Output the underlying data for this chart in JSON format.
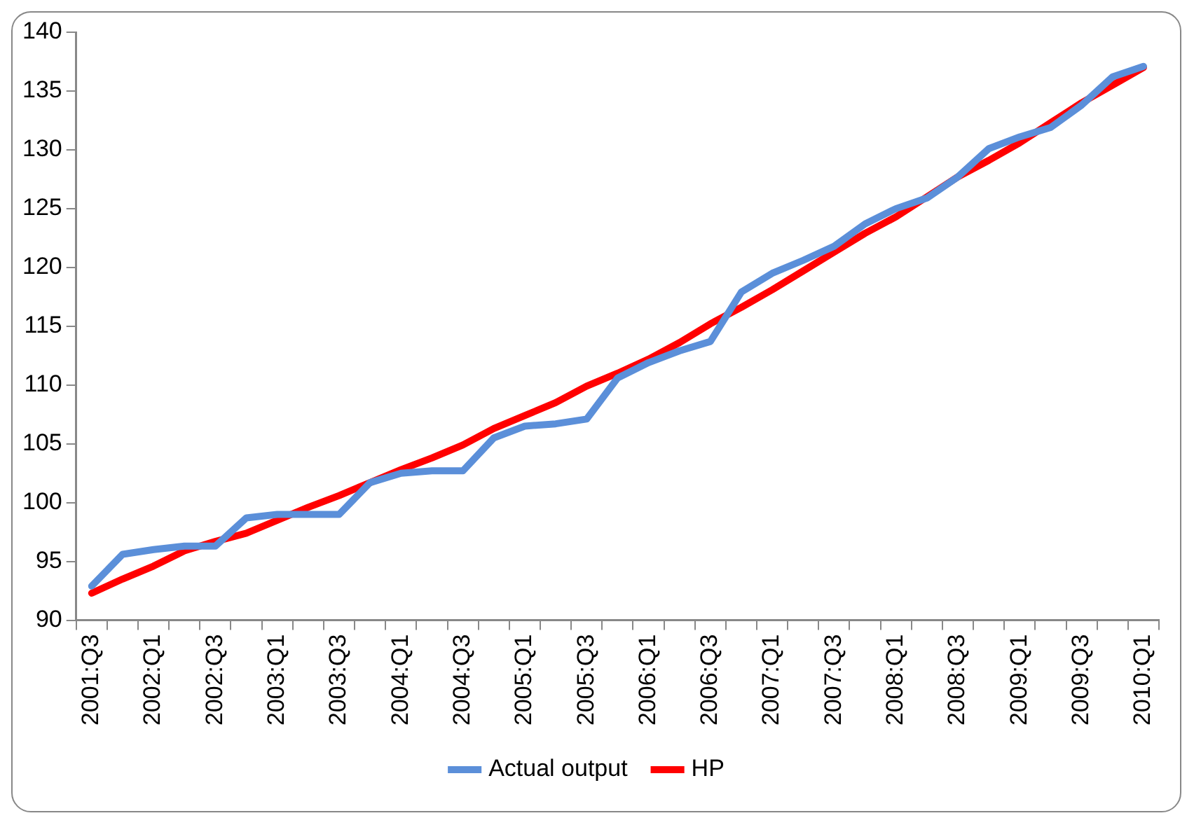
{
  "chart_data": {
    "type": "line",
    "categories": [
      "2001:Q3",
      null,
      "2002:Q1",
      null,
      "2002:Q3",
      null,
      "2003:Q1",
      null,
      "2003:Q3",
      null,
      "2004:Q1",
      null,
      "2004:Q3",
      null,
      "2005:Q1",
      null,
      "2005:Q3",
      null,
      "2006:Q1",
      null,
      "2006:Q3",
      null,
      "2007:Q1",
      null,
      "2007:Q3",
      null,
      "2008:Q1",
      null,
      "2008:Q3",
      null,
      "2009:Q1",
      null,
      "2009:Q3",
      null,
      "2010:Q1"
    ],
    "series": [
      {
        "name": "Actual output",
        "color": "#5b8fd9",
        "values": [
          92.9,
          95.6,
          96.0,
          96.3,
          96.3,
          98.7,
          99.0,
          99.0,
          99.0,
          101.7,
          102.5,
          102.7,
          102.7,
          105.5,
          106.5,
          106.7,
          107.1,
          110.6,
          111.9,
          112.9,
          113.7,
          117.9,
          119.5,
          120.6,
          121.8,
          123.7,
          125.0,
          125.9,
          127.7,
          130.1,
          131.1,
          131.9,
          133.8,
          136.2,
          137.1
        ]
      },
      {
        "name": "HP",
        "color": "#ff0000",
        "values": [
          92.3,
          93.5,
          94.6,
          95.9,
          96.7,
          97.4,
          98.5,
          99.6,
          100.6,
          101.7,
          102.8,
          103.8,
          104.9,
          106.3,
          107.4,
          108.5,
          109.9,
          111.0,
          112.2,
          113.6,
          115.2,
          116.6,
          118.1,
          119.7,
          121.3,
          122.9,
          124.3,
          126.0,
          127.7,
          129.1,
          130.6,
          132.3,
          134.0,
          135.5,
          137.0
        ]
      }
    ],
    "ylim": [
      90,
      140
    ],
    "yticks": [
      90,
      95,
      100,
      105,
      110,
      115,
      120,
      125,
      130,
      135,
      140
    ],
    "grid": false,
    "legend": "bottom",
    "marker": "none",
    "line_style": "solid"
  }
}
